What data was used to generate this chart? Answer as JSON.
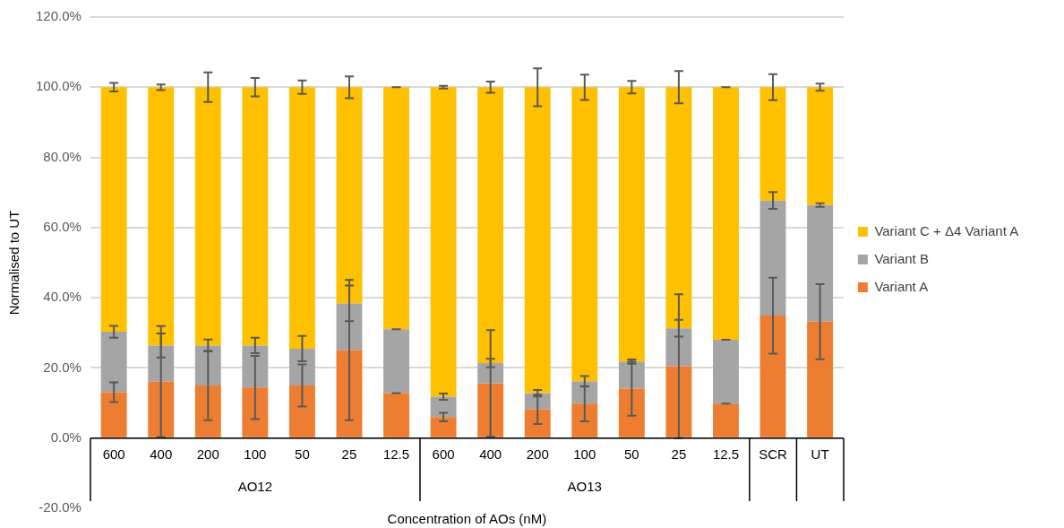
{
  "chart_data": {
    "type": "bar",
    "stacked": true,
    "xlabel": "Concentration of AOs (nM)",
    "ylabel": "Normalised to UT",
    "categories": [
      "600",
      "400",
      "200",
      "100",
      "50",
      "25",
      "12.5",
      "600",
      "400",
      "200",
      "100",
      "50",
      "25",
      "12.5",
      "SCR",
      "UT"
    ],
    "annotations": [
      "AO12",
      "AO13"
    ],
    "series": [
      {
        "name": "Variant A",
        "color": "#ed7d31",
        "values": [
          13.1,
          16.1,
          15.0,
          14.4,
          15.0,
          25.1,
          12.8,
          6.0,
          15.6,
          8.2,
          9.8,
          14.1,
          20.5,
          9.8,
          34.9,
          33.2
        ],
        "errors": [
          2.8,
          15.8,
          9.9,
          9.0,
          6.0,
          20.0,
          0,
          1.2,
          15.2,
          4.2,
          5.0,
          7.7,
          20.5,
          0,
          10.8,
          10.7
        ]
      },
      {
        "name": "Variant B",
        "color": "#a5a5a5",
        "values": [
          17.2,
          10.3,
          11.4,
          12.0,
          10.5,
          13.3,
          18.2,
          5.8,
          5.8,
          4.6,
          6.4,
          7.7,
          10.8,
          18.2,
          32.8,
          33.2
        ],
        "errors": [
          1.7,
          3.4,
          1.7,
          2.2,
          3.6,
          5.1,
          0,
          0.9,
          1.2,
          0.9,
          1.5,
          0.6,
          2.4,
          0,
          2.4,
          0.5
        ]
      },
      {
        "name": "Variant C + Δ4 Variant A",
        "color": "#ffc000",
        "values": [
          69.7,
          73.6,
          73.6,
          73.6,
          74.5,
          61.6,
          69.0,
          88.2,
          78.6,
          87.2,
          83.8,
          78.2,
          68.7,
          72.0,
          32.3,
          33.6
        ],
        "errors": [
          1.2,
          0.8,
          4.2,
          2.6,
          1.9,
          3.1,
          0,
          0.4,
          1.6,
          5.4,
          3.6,
          1.8,
          4.6,
          0,
          3.7,
          1.0
        ]
      }
    ],
    "ylim": [
      -20,
      120
    ],
    "yticks": [
      {
        "value": -20,
        "label": "-20.0%"
      },
      {
        "value": 0,
        "label": "0.0%"
      },
      {
        "value": 20,
        "label": "20.0%"
      },
      {
        "value": 40,
        "label": "40.0%"
      },
      {
        "value": 60,
        "label": "60.0%"
      },
      {
        "value": 80,
        "label": "80.0%"
      },
      {
        "value": 100,
        "label": "100.0%"
      },
      {
        "value": 120,
        "label": "120.0%"
      }
    ],
    "grid": "y",
    "legend": "right"
  }
}
